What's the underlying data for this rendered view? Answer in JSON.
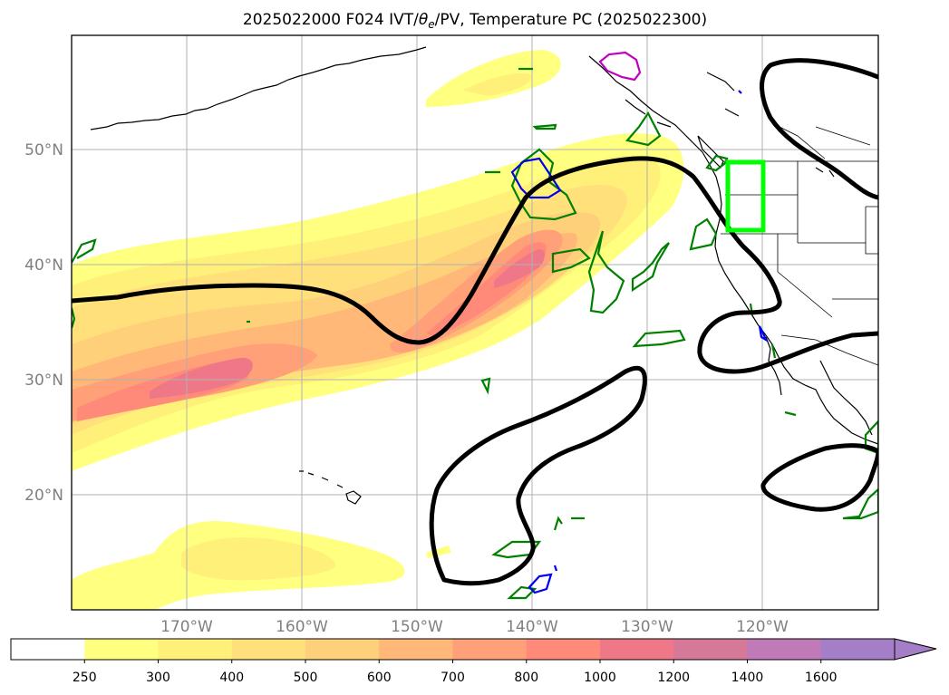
{
  "title": {
    "prefix": "2025022000 F024 IVT/",
    "theta": "θ",
    "theta_sub": "e",
    "suffix": "/PV, Temperature PC (2025022300)"
  },
  "map": {
    "lon_range": [
      -180,
      -110
    ],
    "lat_range": [
      10,
      60
    ],
    "grid": true,
    "lat_ticks": [
      {
        "value": 20,
        "label": "20°N"
      },
      {
        "value": 30,
        "label": "30°N"
      },
      {
        "value": 40,
        "label": "40°N"
      },
      {
        "value": 50,
        "label": "50°N"
      }
    ],
    "lon_ticks": [
      {
        "value": -170,
        "label": "170°W"
      },
      {
        "value": -160,
        "label": "160°W"
      },
      {
        "value": -150,
        "label": "150°W"
      },
      {
        "value": -140,
        "label": "140°W"
      },
      {
        "value": -130,
        "label": "130°W"
      },
      {
        "value": -120,
        "label": "120°W"
      }
    ]
  },
  "colorbar": {
    "levels": [
      "250",
      "300",
      "400",
      "500",
      "600",
      "700",
      "800",
      "1000",
      "1200",
      "1400",
      "1600"
    ],
    "colors": [
      "#ffffff",
      "#ffff80",
      "#fff07a",
      "#ffe07a",
      "#ffd07a",
      "#ffb878",
      "#ffa078",
      "#ff8a7a",
      "#ee7888",
      "#d67898",
      "#c07ab8",
      "#a47ec6"
    ],
    "extend": "max"
  },
  "colors": {
    "ivt_levels": [
      "#ffff80",
      "#fff07a",
      "#ffe07a",
      "#ffd07a",
      "#ffb878",
      "#ffa078",
      "#ff8a7a",
      "#ee7888"
    ],
    "temperature_pc": "#000000",
    "theta_e": "#008000",
    "pv": "#0000ee",
    "magenta_contour": "#c000c0",
    "target_box": "#00ff00"
  }
}
